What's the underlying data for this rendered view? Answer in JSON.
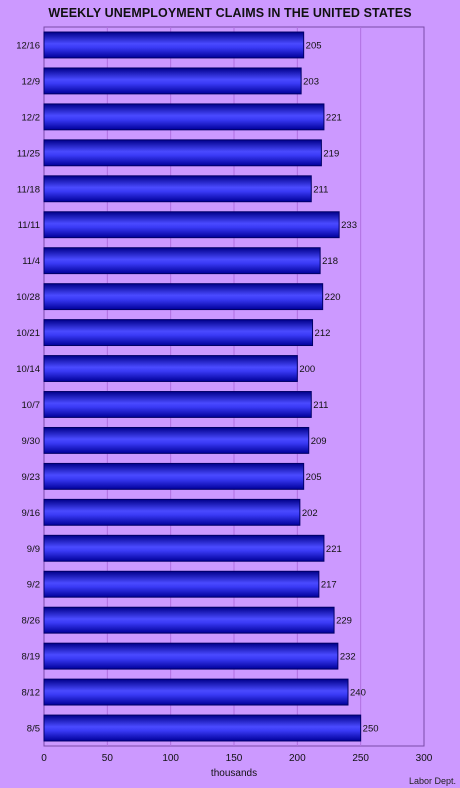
{
  "chart_data": {
    "type": "bar",
    "orientation": "horizontal",
    "title": "WEEKLY UNEMPLOYMENT CLAIMS IN THE UNITED STATES",
    "xlabel": "thousands",
    "ylabel": "",
    "source": "Labor Dept.",
    "categories": [
      "12/16",
      "12/9",
      "12/2",
      "11/25",
      "11/18",
      "11/11",
      "11/4",
      "10/28",
      "10/21",
      "10/14",
      "10/7",
      "9/30",
      "9/23",
      "9/16",
      "9/9",
      "9/2",
      "8/26",
      "8/19",
      "8/12",
      "8/5"
    ],
    "values": [
      205,
      203,
      221,
      219,
      211,
      233,
      218,
      220,
      212,
      200,
      211,
      209,
      205,
      202,
      221,
      217,
      229,
      232,
      240,
      250
    ],
    "xlim": [
      0,
      300
    ],
    "xticks": [
      0,
      50,
      100,
      150,
      200,
      250,
      300
    ],
    "grid": true,
    "colors": {
      "background": "#cc99ff",
      "bar_dark": "#0000bb",
      "bar_light": "#5555ff",
      "grid": "#b070e0"
    }
  }
}
